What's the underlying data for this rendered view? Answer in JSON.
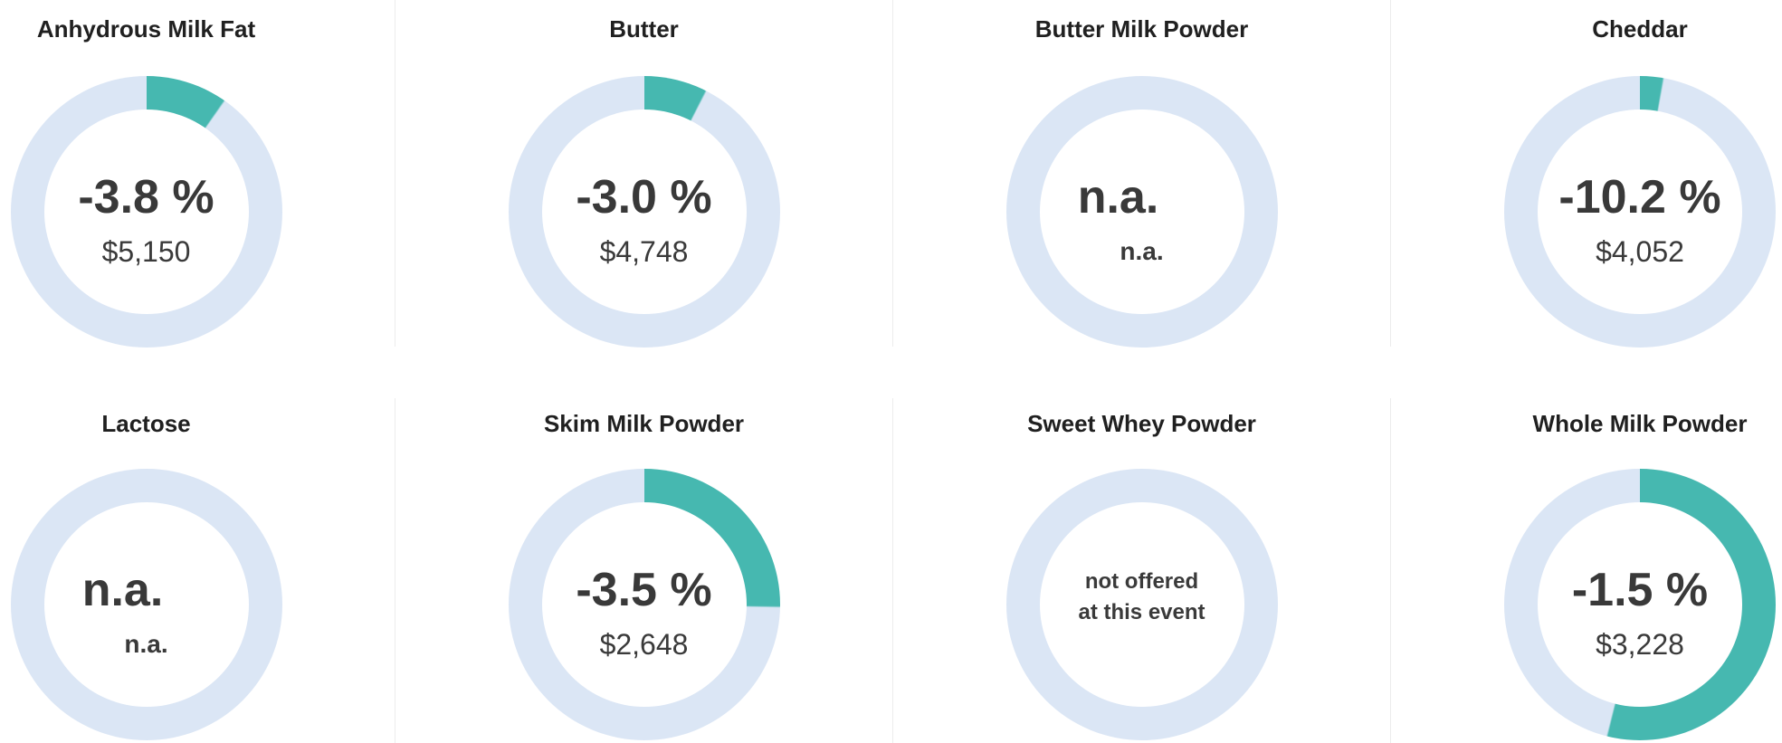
{
  "theme": {
    "teal": "#46b8b0",
    "ring": "#dbe6f5",
    "title_color": "#202020",
    "value_color": "#393939",
    "divider_color": "#ececec",
    "background": "#ffffff"
  },
  "cards": [
    {
      "title": "Anhydrous Milk Fat",
      "change_label": "-3.8 %",
      "price_label": "$5,150",
      "arc_deg": 35
    },
    {
      "title": "Butter",
      "change_label": "-3.0 %",
      "price_label": "$4,748",
      "arc_deg": 27
    },
    {
      "title": "Butter Milk Powder",
      "change_label": "n.a.",
      "price_label": "n.a.",
      "arc_deg": 0
    },
    {
      "title": "Cheddar",
      "change_label": "-10.2 %",
      "price_label": "$4,052",
      "arc_deg": 10
    },
    {
      "title": "Lactose",
      "change_label": "n.a.",
      "price_label": "n.a.",
      "arc_deg": 0
    },
    {
      "title": "Skim Milk Powder",
      "change_label": "-3.5 %",
      "price_label": "$2,648",
      "arc_deg": 91
    },
    {
      "title": "Sweet Whey Powder",
      "note_line1": "not offered",
      "note_line2": "at this event",
      "arc_deg": 0
    },
    {
      "title": "Whole Milk Powder",
      "change_label": "-1.5 %",
      "price_label": "$3,228",
      "arc_deg": 194
    }
  ],
  "chart_data": [
    {
      "type": "donut",
      "title": "Anhydrous Milk Fat",
      "change_pct": -3.8,
      "avg_price_usd": 5150,
      "arc_fill_deg": 35,
      "arc_fill_pct": 9.7,
      "colors": {
        "fill": "#46b8b0",
        "track": "#dbe6f5"
      }
    },
    {
      "type": "donut",
      "title": "Butter",
      "change_pct": -3.0,
      "avg_price_usd": 4748,
      "arc_fill_deg": 27,
      "arc_fill_pct": 7.5,
      "colors": {
        "fill": "#46b8b0",
        "track": "#dbe6f5"
      }
    },
    {
      "type": "donut",
      "title": "Butter Milk Powder",
      "change_pct": null,
      "avg_price_usd": null,
      "arc_fill_deg": 0,
      "arc_fill_pct": 0,
      "note": "n.a.",
      "colors": {
        "fill": "#46b8b0",
        "track": "#dbe6f5"
      }
    },
    {
      "type": "donut",
      "title": "Cheddar",
      "change_pct": -10.2,
      "avg_price_usd": 4052,
      "arc_fill_deg": 10,
      "arc_fill_pct": 2.8,
      "colors": {
        "fill": "#46b8b0",
        "track": "#dbe6f5"
      }
    },
    {
      "type": "donut",
      "title": "Lactose",
      "change_pct": null,
      "avg_price_usd": null,
      "arc_fill_deg": 0,
      "arc_fill_pct": 0,
      "note": "n.a.",
      "colors": {
        "fill": "#46b8b0",
        "track": "#dbe6f5"
      }
    },
    {
      "type": "donut",
      "title": "Skim Milk Powder",
      "change_pct": -3.5,
      "avg_price_usd": 2648,
      "arc_fill_deg": 91,
      "arc_fill_pct": 25.3,
      "colors": {
        "fill": "#46b8b0",
        "track": "#dbe6f5"
      }
    },
    {
      "type": "donut",
      "title": "Sweet Whey Powder",
      "change_pct": null,
      "avg_price_usd": null,
      "arc_fill_deg": 0,
      "arc_fill_pct": 0,
      "note": "not offered at this event",
      "colors": {
        "fill": "#46b8b0",
        "track": "#dbe6f5"
      }
    },
    {
      "type": "donut",
      "title": "Whole Milk Powder",
      "change_pct": -1.5,
      "avg_price_usd": 3228,
      "arc_fill_deg": 194,
      "arc_fill_pct": 53.9,
      "colors": {
        "fill": "#46b8b0",
        "track": "#dbe6f5"
      }
    }
  ]
}
